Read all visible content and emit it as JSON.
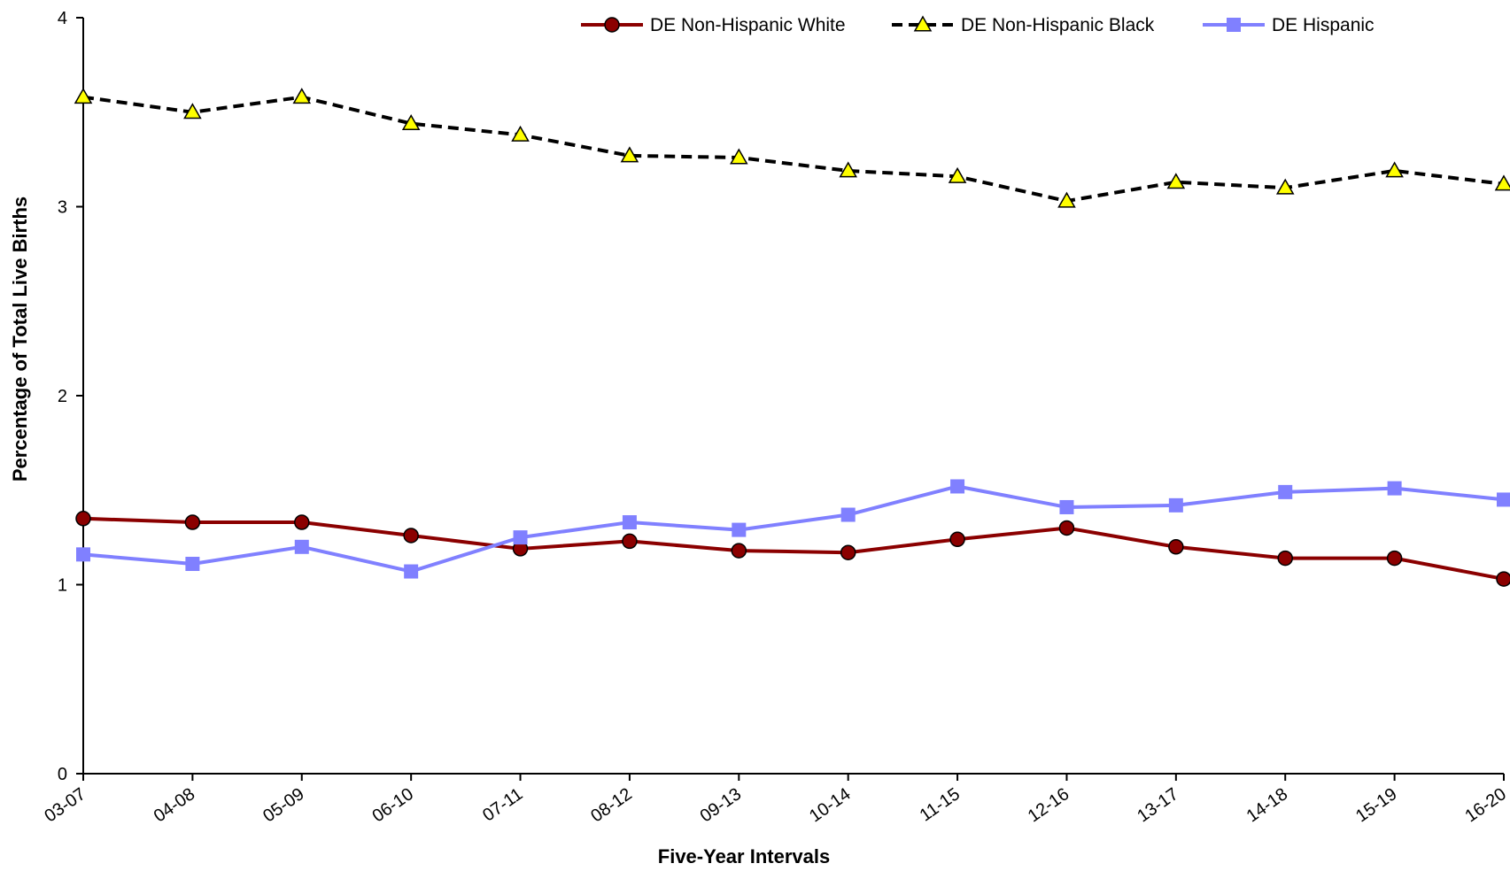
{
  "chart_data": {
    "type": "line",
    "title": "",
    "xlabel": "Five-Year Intervals",
    "ylabel": "Percentage of Total Live Births",
    "ylim": [
      0,
      4
    ],
    "yticks": [
      "0",
      "1",
      "2",
      "3",
      "4"
    ],
    "grid": false,
    "legend_position": "top-right",
    "categories": [
      "03-07",
      "04-08",
      "05-09",
      "06-10",
      "07-11",
      "08-12",
      "09-13",
      "10-14",
      "11-15",
      "12-16",
      "13-17",
      "14-18",
      "15-19",
      "16-20"
    ],
    "series": [
      {
        "name": "DE Non-Hispanic White",
        "color": "#8b0000",
        "line_style": "solid",
        "marker": "circle",
        "values": [
          1.35,
          1.33,
          1.33,
          1.26,
          1.19,
          1.23,
          1.18,
          1.17,
          1.24,
          1.3,
          1.2,
          1.14,
          1.14,
          1.03
        ]
      },
      {
        "name": "DE Non-Hispanic Black",
        "color": "#000000",
        "marker_color": "#ffff00",
        "line_style": "dashed",
        "marker": "triangle",
        "values": [
          3.58,
          3.5,
          3.58,
          3.44,
          3.38,
          3.27,
          3.26,
          3.19,
          3.16,
          3.03,
          3.13,
          3.1,
          3.19,
          3.12
        ]
      },
      {
        "name": "DE Hispanic",
        "color": "#8080ff",
        "line_style": "solid",
        "marker": "square",
        "values": [
          1.16,
          1.11,
          1.2,
          1.07,
          1.25,
          1.33,
          1.29,
          1.37,
          1.52,
          1.41,
          1.42,
          1.49,
          1.51,
          1.45
        ]
      }
    ]
  }
}
